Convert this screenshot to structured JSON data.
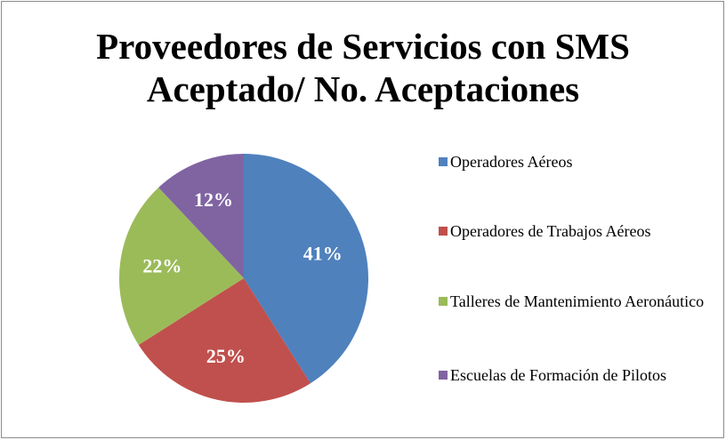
{
  "chart_data": {
    "type": "pie",
    "title": "Proveedores de Servicios con SMS Aceptado/ No. Aceptaciones",
    "categories": [
      "Operadores Aéreos",
      "Operadores de Trabajos Aéreos",
      "Talleres de Mantenimiento Aeronáutico",
      "Escuelas  de Formación de Pilotos"
    ],
    "values": [
      41,
      25,
      22,
      12
    ],
    "value_labels": [
      "41%",
      "25%",
      "22%",
      "12%"
    ],
    "colors": [
      "#4f81bd",
      "#c0504d",
      "#9bbb59",
      "#8064a2"
    ],
    "legend": "right"
  }
}
